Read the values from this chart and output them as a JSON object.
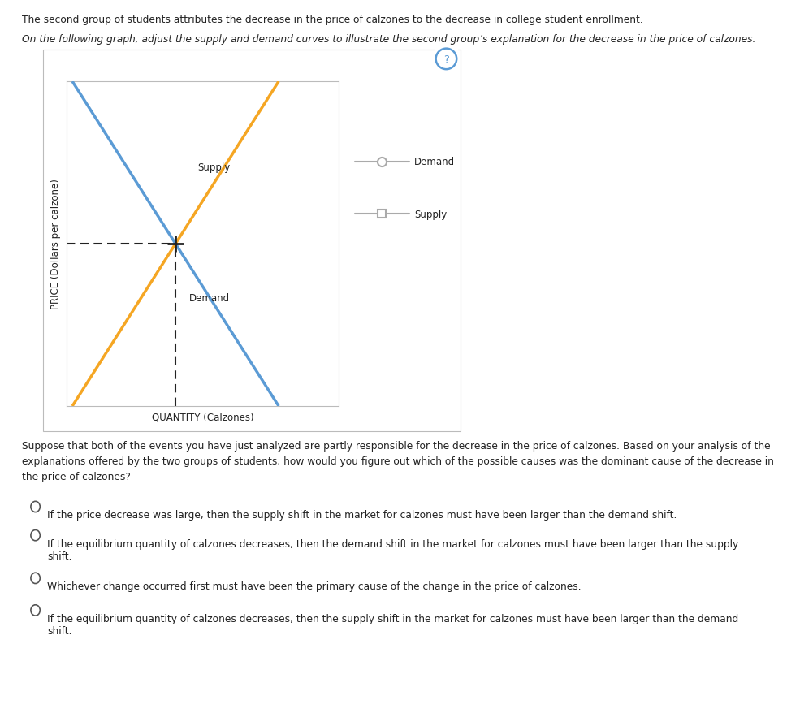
{
  "title_text1": "The second group of students attributes the decrease in the price of calzones to the decrease in college student enrollment.",
  "title_text2": "On the following graph, adjust the supply and demand curves to illustrate the second group’s explanation for the decrease in the price of calzones.",
  "supply_color": "#f5a623",
  "demand_color": "#5b9bd5",
  "dashed_color": "#222222",
  "xlabel": "QUANTITY (Calzones)",
  "ylabel": "PRICE (Dollars per calzone)",
  "supply_label": "Supply",
  "demand_label": "Demand",
  "question_text": "Suppose that both of the events you have just analyzed are partly responsible for the decrease in the price of calzones. Based on your analysis of the\nexplanations offered by the two groups of students, how would you figure out which of the possible causes was the dominant cause of the decrease in\nthe price of calzones?",
  "options": [
    "If the price decrease was large, then the supply shift in the market for calzones must have been larger than the demand shift.",
    "If the equilibrium quantity of calzones decreases, then the demand shift in the market for calzones must have been larger than the supply\nshift.",
    "Whichever change occurred first must have been the primary cause of the change in the price of calzones.",
    "If the equilibrium quantity of calzones decreases, then the supply shift in the market for calzones must have been larger than the demand\nshift."
  ],
  "bg_color": "#ffffff",
  "legend_line_color": "#aaaaaa",
  "spine_color": "#bbbbbb",
  "text_color": "#222222",
  "radio_color": "#555555"
}
